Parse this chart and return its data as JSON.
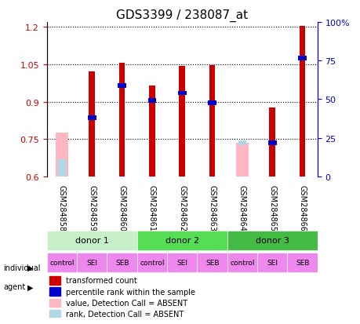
{
  "title": "GDS3399 / 238087_at",
  "samples": [
    "GSM284858",
    "GSM284859",
    "GSM284860",
    "GSM284861",
    "GSM284862",
    "GSM284863",
    "GSM284864",
    "GSM284865",
    "GSM284866"
  ],
  "red_values": [
    null,
    1.02,
    1.055,
    0.965,
    1.045,
    1.048,
    null,
    0.875,
    1.205
  ],
  "blue_values": [
    null,
    0.835,
    0.965,
    0.905,
    0.935,
    0.895,
    null,
    0.735,
    1.075
  ],
  "pink_values": [
    0.775,
    null,
    null,
    null,
    null,
    null,
    0.735,
    null,
    null
  ],
  "lightblue_values": [
    0.67,
    null,
    null,
    null,
    null,
    null,
    null,
    null,
    null
  ],
  "absent_rank": [
    null,
    null,
    null,
    null,
    null,
    null,
    0.735,
    null,
    null
  ],
  "ylim": [
    0.6,
    1.22
  ],
  "yticks": [
    0.6,
    0.75,
    0.9,
    1.05,
    1.2
  ],
  "right_yticks": [
    0,
    25,
    50,
    75,
    100
  ],
  "right_ylim": [
    0,
    100
  ],
  "donors": [
    {
      "label": "donor 1",
      "cols": [
        0,
        1,
        2
      ],
      "color": "#90EE90"
    },
    {
      "label": "donor 2",
      "cols": [
        3,
        4,
        5
      ],
      "color": "#00CC00"
    },
    {
      "label": "donor 3",
      "cols": [
        6,
        7,
        8
      ],
      "color": "#33CC33"
    }
  ],
  "agents": [
    "control",
    "SEI",
    "SEB",
    "control",
    "SEI",
    "SEB",
    "control",
    "SEI",
    "SEB"
  ],
  "agent_colors": [
    "#FF99FF",
    "#FF99FF",
    "#FF99FF",
    "#FF99FF",
    "#FF99FF",
    "#FF99FF",
    "#FF99FF",
    "#FF99FF",
    "#FF99FF"
  ],
  "bar_color_red": "#CC0000",
  "bar_color_blue": "#0000CC",
  "bar_color_pink": "#FFB6C1",
  "bar_color_lightblue": "#ADD8E6",
  "bar_width": 0.4,
  "dotted_line_color": "black",
  "background_color": "#F0F0F0",
  "title_fontsize": 11,
  "axis_label_color_red": "#CC0000",
  "axis_label_color_blue": "#0000CC"
}
